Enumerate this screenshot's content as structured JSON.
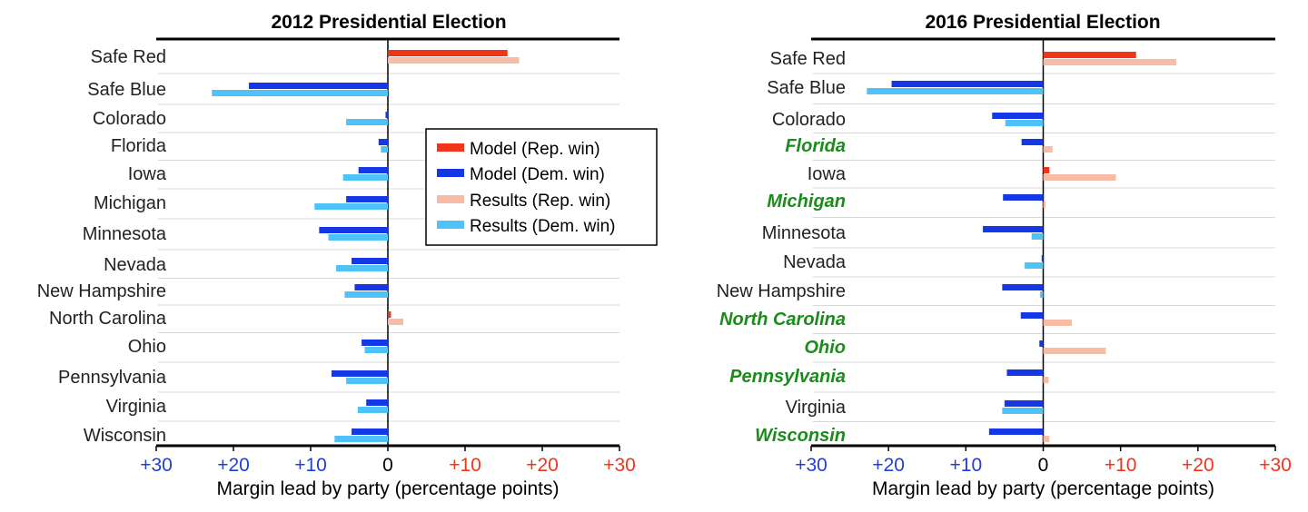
{
  "colors": {
    "model_rep": "#f2341a",
    "model_dem": "#1538e6",
    "results_rep": "#f8bba6",
    "results_dem": "#4fc3f7",
    "tick_left": "#1f3fd6",
    "tick_right": "#f2341a",
    "highlight_label": "#1a8c1a"
  },
  "legend": {
    "model_rep": "Model (Rep. win)",
    "model_dem": "Model (Dem. win)",
    "results_rep": "Results (Rep. win)",
    "results_dem": "Results (Dem. win)"
  },
  "chart_data": [
    {
      "type": "bar",
      "orientation": "horizontal",
      "title": "2012 Presidential Election",
      "xlabel": "Margin lead by party (percentage points)",
      "xlim": [
        -30,
        30
      ],
      "xticks": [
        {
          "value": -30,
          "label": "+30"
        },
        {
          "value": -20,
          "label": "+20"
        },
        {
          "value": -10,
          "label": "+10"
        },
        {
          "value": 0,
          "label": "0"
        },
        {
          "value": 10,
          "label": "+10"
        },
        {
          "value": 20,
          "label": "+20"
        },
        {
          "value": 30,
          "label": "+30"
        }
      ],
      "legend_position": "right",
      "categories": [
        "Safe Red",
        "Safe Blue",
        "Colorado",
        "Florida",
        "Iowa",
        "Michigan",
        "Minnesota",
        "Nevada",
        "New Hampshire",
        "North Carolina",
        "Ohio",
        "Pennsylvania",
        "Virginia",
        "Wisconsin"
      ],
      "highlighted": [],
      "series": [
        {
          "name": "Model",
          "key": "model",
          "values": [
            15.5,
            -18,
            -0.3,
            -1.2,
            -3.8,
            -5.4,
            -8.9,
            -4.7,
            -4.3,
            0.4,
            -3.4,
            -7.3,
            -2.8,
            -4.7
          ]
        },
        {
          "name": "Results",
          "key": "results",
          "values": [
            17.0,
            -22.8,
            -5.4,
            -0.9,
            -5.8,
            -9.5,
            -7.7,
            -6.7,
            -5.6,
            2.0,
            -3.0,
            -5.4,
            -3.9,
            -6.9
          ]
        }
      ]
    },
    {
      "type": "bar",
      "orientation": "horizontal",
      "title": "2016 Presidential Election",
      "xlabel": "Margin lead by party (percentage points)",
      "xlim": [
        -30,
        30
      ],
      "xticks": [
        {
          "value": -30,
          "label": "+30"
        },
        {
          "value": -20,
          "label": "+20"
        },
        {
          "value": -10,
          "label": "+10"
        },
        {
          "value": 0,
          "label": "0"
        },
        {
          "value": 10,
          "label": "+10"
        },
        {
          "value": 20,
          "label": "+20"
        },
        {
          "value": 30,
          "label": "+30"
        }
      ],
      "categories": [
        "Safe Red",
        "Safe Blue",
        "Colorado",
        "Florida",
        "Iowa",
        "Michigan",
        "Minnesota",
        "Nevada",
        "New Hampshire",
        "North Carolina",
        "Ohio",
        "Pennsylvania",
        "Virginia",
        "Wisconsin"
      ],
      "highlighted": [
        "Florida",
        "Michigan",
        "North Carolina",
        "Ohio",
        "Pennsylvania",
        "Wisconsin"
      ],
      "series": [
        {
          "name": "Model",
          "key": "model",
          "values": [
            12.0,
            -19.6,
            -6.6,
            -2.8,
            0.8,
            -5.2,
            -7.8,
            -0.2,
            -5.3,
            -2.9,
            -0.5,
            -4.7,
            -5.0,
            -7.0
          ]
        },
        {
          "name": "Results",
          "key": "results",
          "values": [
            17.2,
            -22.8,
            -4.9,
            1.2,
            9.4,
            0.3,
            -1.5,
            -2.4,
            -0.4,
            3.7,
            8.1,
            0.7,
            -5.3,
            0.8
          ]
        }
      ]
    }
  ]
}
